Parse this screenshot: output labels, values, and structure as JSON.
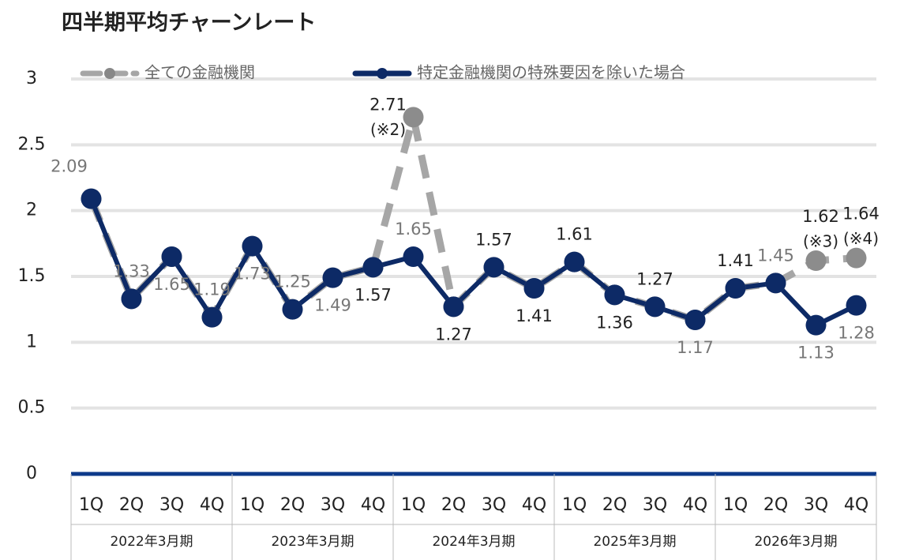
{
  "chart_data": {
    "type": "line",
    "title": "四半期平均チャーンレート",
    "categories": [
      "1Q",
      "2Q",
      "3Q",
      "4Q",
      "1Q",
      "2Q",
      "3Q",
      "4Q",
      "1Q",
      "2Q",
      "3Q",
      "4Q",
      "1Q",
      "2Q",
      "3Q",
      "4Q",
      "1Q",
      "2Q",
      "3Q",
      "4Q"
    ],
    "groups": [
      "2022年3月期",
      "2023年3月期",
      "2024年3月期",
      "2025年3月期",
      "2026年3月期"
    ],
    "series": [
      {
        "name": "全ての金融機関",
        "color": "#a6a6a6",
        "dashed": true,
        "values": [
          2.09,
          1.33,
          1.65,
          1.19,
          1.73,
          1.25,
          1.49,
          1.57,
          2.71,
          1.27,
          1.57,
          1.41,
          1.61,
          1.36,
          1.27,
          1.17,
          1.41,
          1.45,
          1.62,
          1.64
        ],
        "notes": [
          null,
          null,
          null,
          null,
          null,
          null,
          null,
          null,
          "(※2)",
          null,
          null,
          null,
          null,
          null,
          null,
          null,
          null,
          null,
          "(※3)",
          "(※4)"
        ]
      },
      {
        "name": "特定金融機関の特殊要因を除いた場合",
        "color": "#0d2a66",
        "values": [
          2.09,
          1.33,
          1.65,
          1.19,
          1.73,
          1.25,
          1.49,
          1.57,
          1.65,
          1.27,
          1.57,
          1.41,
          1.61,
          1.36,
          1.27,
          1.17,
          1.41,
          1.45,
          1.13,
          1.28
        ]
      }
    ],
    "ylim": [
      0,
      3
    ],
    "yticks": [
      0,
      0.5,
      1,
      1.5,
      2,
      2.5,
      3
    ],
    "grid": true,
    "legend": "top"
  }
}
